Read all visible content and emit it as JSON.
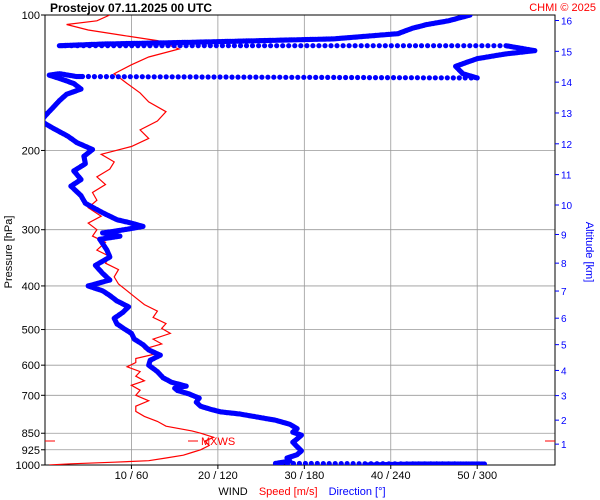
{
  "chart_data": {
    "type": "line",
    "title": "Prostejov   07.11.2025 00 UTC",
    "credit": "CHMI © 2025",
    "ylabel": "Pressure [hPa]",
    "y2label": "Altitude [km]",
    "xlabel_parts": [
      "WIND",
      "Speed [m/s]",
      "Direction [°]"
    ],
    "y_scale": "log",
    "ylim": [
      1000,
      100
    ],
    "y2lim_km": [
      0.15,
      16.5
    ],
    "xlim_speed": [
      0,
      59
    ],
    "xlim_direction": [
      0,
      354
    ],
    "pressure_ticks": [
      "100",
      "200",
      "300",
      "400",
      "500",
      "600",
      "700",
      "850",
      "925",
      "1000"
    ],
    "x_ticks": [
      "10 / 60",
      "20 / 120",
      "30 / 180",
      "40 / 240",
      "50 / 300"
    ],
    "altitude_ticks": [
      "1",
      "2",
      "3",
      "4",
      "5",
      "6",
      "7",
      "8",
      "9",
      "10",
      "11",
      "12",
      "13",
      "14",
      "15",
      "16"
    ],
    "annotation": "MXWS",
    "colors": {
      "speed": "#ff0000",
      "direction": "#0000ff",
      "grid": "#999999",
      "text": "#000000"
    },
    "series": [
      {
        "name": "Speed [m/s]",
        "color": "#ff0000",
        "points": [
          [
            0.5,
            1000
          ],
          [
            3,
            994
          ],
          [
            8,
            986
          ],
          [
            12,
            978
          ],
          [
            14,
            965
          ],
          [
            16,
            951
          ],
          [
            17,
            938
          ],
          [
            18,
            925
          ],
          [
            19,
            905
          ],
          [
            18.5,
            885
          ],
          [
            19.5,
            868
          ],
          [
            18,
            850
          ],
          [
            17,
            840
          ],
          [
            14,
            820
          ],
          [
            13,
            800
          ],
          [
            11.5,
            780
          ],
          [
            10.5,
            760
          ],
          [
            10.5,
            740
          ],
          [
            12,
            720
          ],
          [
            10.5,
            700
          ],
          [
            11,
            682
          ],
          [
            10,
            665
          ],
          [
            11.5,
            650
          ],
          [
            10.5,
            635
          ],
          [
            11,
            620
          ],
          [
            9.5,
            605
          ],
          [
            10.5,
            592
          ],
          [
            10.5,
            580
          ],
          [
            12.5,
            568
          ],
          [
            11.5,
            552
          ],
          [
            13.5,
            538
          ],
          [
            12.5,
            525
          ],
          [
            14.5,
            510
          ],
          [
            13.5,
            497
          ],
          [
            14,
            485
          ],
          [
            12.5,
            470
          ],
          [
            13,
            455
          ],
          [
            11.5,
            440
          ],
          [
            10.5,
            425
          ],
          [
            9.5,
            410
          ],
          [
            8.5,
            396
          ],
          [
            8,
            382
          ],
          [
            8.5,
            368
          ],
          [
            7,
            356
          ],
          [
            7.5,
            344
          ],
          [
            6,
            333
          ],
          [
            7,
            320
          ],
          [
            5.5,
            310
          ],
          [
            6,
            300
          ],
          [
            5,
            290
          ],
          [
            6.5,
            280
          ],
          [
            5,
            268
          ],
          [
            6,
            258
          ],
          [
            5.5,
            248
          ],
          [
            7,
            238
          ],
          [
            6,
            229
          ],
          [
            7.5,
            220
          ],
          [
            8,
            212
          ],
          [
            6.5,
            204
          ],
          [
            10,
            196
          ],
          [
            12,
            188
          ],
          [
            11,
            180
          ],
          [
            13,
            172
          ],
          [
            14,
            164
          ],
          [
            12,
            156
          ],
          [
            11,
            149
          ],
          [
            9.5,
            142
          ],
          [
            8,
            135
          ],
          [
            10,
            129
          ],
          [
            12,
            124
          ],
          [
            15.5,
            119
          ],
          [
            13,
            114
          ],
          [
            9,
            111
          ],
          [
            5,
            108
          ],
          [
            2.5,
            105
          ],
          [
            6,
            103
          ],
          [
            7.5,
            100
          ]
        ]
      },
      {
        "name": "Direction [°]",
        "color": "#0000ff",
        "points": [
          [
            222,
            1000
          ],
          [
            255,
            995
          ],
          [
            305,
            995
          ],
          [
            160,
            992
          ],
          [
            170,
            980
          ],
          [
            168,
            965
          ],
          [
            175,
            948
          ],
          [
            178,
            930
          ],
          [
            175,
            910
          ],
          [
            172,
            890
          ],
          [
            175,
            875
          ],
          [
            178,
            858
          ],
          [
            172,
            845
          ],
          [
            175,
            830
          ],
          [
            170,
            812
          ],
          [
            160,
            795
          ],
          [
            145,
            780
          ],
          [
            135,
            770
          ],
          [
            122,
            762
          ],
          [
            115,
            752
          ],
          [
            108,
            740
          ],
          [
            105,
            725
          ],
          [
            107,
            710
          ],
          [
            100,
            695
          ],
          [
            92,
            683
          ],
          [
            90,
            675
          ],
          [
            98,
            668
          ],
          [
            88,
            655
          ],
          [
            82,
            640
          ],
          [
            78,
            620
          ],
          [
            72,
            600
          ],
          [
            73,
            585
          ],
          [
            80,
            570
          ],
          [
            72,
            555
          ],
          [
            68,
            540
          ],
          [
            62,
            525
          ],
          [
            60,
            510
          ],
          [
            55,
            498
          ],
          [
            50,
            486
          ],
          [
            48,
            472
          ],
          [
            54,
            458
          ],
          [
            58,
            445
          ],
          [
            50,
            432
          ],
          [
            45,
            420
          ],
          [
            40,
            410
          ],
          [
            30,
            400
          ],
          [
            45,
            388
          ],
          [
            40,
            375
          ],
          [
            35,
            360
          ],
          [
            45,
            345
          ],
          [
            43,
            333
          ],
          [
            40,
            322
          ],
          [
            38,
            315
          ],
          [
            52,
            310
          ],
          [
            40,
            305
          ],
          [
            55,
            300
          ],
          [
            68,
            295
          ],
          [
            60,
            290
          ],
          [
            50,
            285
          ],
          [
            40,
            275
          ],
          [
            28,
            262
          ],
          [
            25,
            252
          ],
          [
            18,
            240
          ],
          [
            25,
            232
          ],
          [
            20,
            222
          ],
          [
            28,
            214
          ],
          [
            27,
            206
          ],
          [
            33,
            199
          ],
          [
            22,
            192
          ],
          [
            16,
            186
          ],
          [
            5,
            178
          ],
          [
            -3,
            172
          ],
          [
            2,
            165
          ],
          [
            6,
            160
          ],
          [
            10,
            155
          ],
          [
            15,
            150
          ],
          [
            25,
            146
          ],
          [
            20,
            142
          ],
          [
            12,
            139
          ],
          [
            3,
            136
          ],
          [
            10,
            135
          ],
          [
            22,
            137
          ],
          [
            26,
            137
          ],
          [
            300,
            138
          ],
          [
            290,
            135
          ],
          [
            285,
            130
          ],
          [
            300,
            125
          ],
          [
            320,
            122
          ],
          [
            340,
            120
          ],
          [
            320,
            117
          ],
          [
            10,
            117
          ],
          [
            40,
            116
          ],
          [
            100,
            115
          ],
          [
            150,
            114
          ],
          [
            200,
            113
          ],
          [
            245,
            110
          ],
          [
            255,
            107
          ],
          [
            265,
            105
          ],
          [
            280,
            103
          ],
          [
            290,
            101
          ],
          [
            295,
            100
          ]
        ]
      }
    ]
  }
}
